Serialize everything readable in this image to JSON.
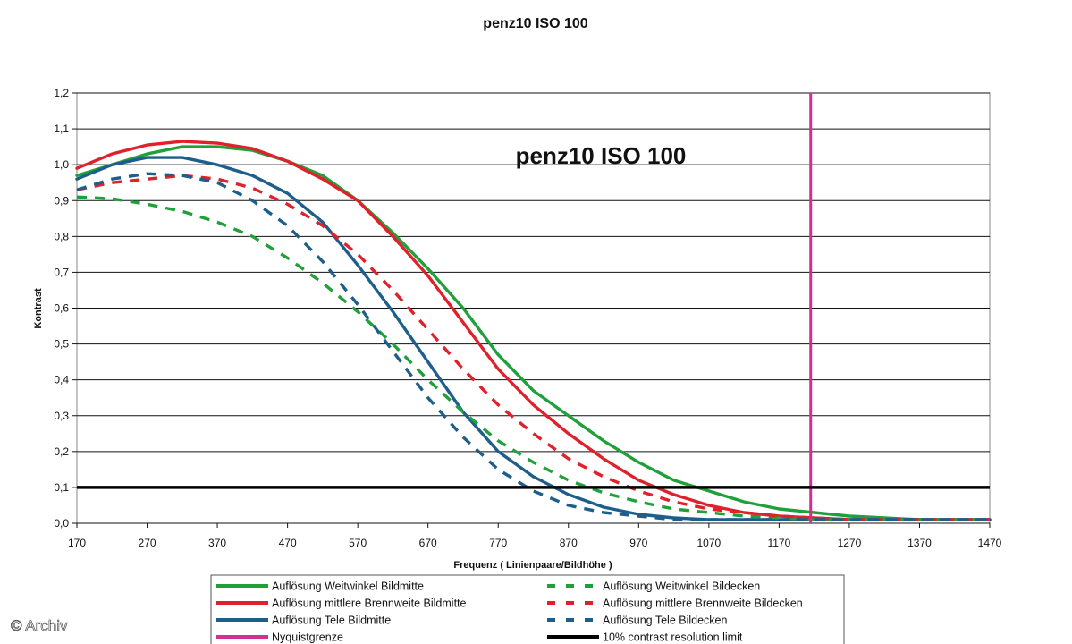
{
  "chart_data": {
    "type": "line",
    "title": "penz10 ISO 100",
    "inner_title": "penz10 ISO 100",
    "xlabel": "Frequenz ( Linienpaare/Bildhöhe )",
    "ylabel": "Kontrast",
    "xlim": [
      170,
      1470
    ],
    "ylim": [
      0,
      1.2
    ],
    "x_ticks": [
      "170",
      "270",
      "370",
      "470",
      "570",
      "670",
      "770",
      "870",
      "970",
      "1070",
      "1170",
      "1270",
      "1370",
      "1470"
    ],
    "y_ticks": [
      "0,0",
      "0,1",
      "0,2",
      "0,3",
      "0,4",
      "0,5",
      "0,6",
      "0,7",
      "0,8",
      "0,9",
      "1,0",
      "1,1",
      "1,2"
    ],
    "grid": "horizontal",
    "legend_position": "bottom",
    "series": [
      {
        "name": "Auflösung Weitwinkel Bildmitte",
        "color": "#1fa03a",
        "dash": false,
        "x": [
          170,
          220,
          270,
          320,
          370,
          420,
          470,
          520,
          570,
          620,
          670,
          720,
          770,
          820,
          870,
          920,
          970,
          1020,
          1070,
          1120,
          1170,
          1220,
          1270,
          1320,
          1370,
          1420,
          1470
        ],
        "y": [
          0.97,
          1.0,
          1.03,
          1.05,
          1.05,
          1.04,
          1.01,
          0.97,
          0.9,
          0.81,
          0.71,
          0.6,
          0.47,
          0.37,
          0.3,
          0.23,
          0.17,
          0.12,
          0.09,
          0.06,
          0.04,
          0.03,
          0.02,
          0.015,
          0.01,
          0.01,
          0.01
        ]
      },
      {
        "name": "Auflösung mittlere Brennweite Bildmitte",
        "color": "#e0202a",
        "dash": false,
        "x": [
          170,
          220,
          270,
          320,
          370,
          420,
          470,
          520,
          570,
          620,
          670,
          720,
          770,
          820,
          870,
          920,
          970,
          1020,
          1070,
          1120,
          1170,
          1220,
          1270,
          1320,
          1370,
          1420,
          1470
        ],
        "y": [
          0.99,
          1.03,
          1.055,
          1.065,
          1.06,
          1.045,
          1.01,
          0.96,
          0.9,
          0.8,
          0.69,
          0.56,
          0.43,
          0.33,
          0.25,
          0.18,
          0.12,
          0.08,
          0.05,
          0.03,
          0.02,
          0.015,
          0.01,
          0.01,
          0.01,
          0.01,
          0.01
        ]
      },
      {
        "name": "Auflösung Tele Bildmitte",
        "color": "#1d5f8a",
        "dash": false,
        "x": [
          170,
          220,
          270,
          320,
          370,
          420,
          470,
          520,
          570,
          620,
          670,
          720,
          770,
          820,
          870,
          920,
          970,
          1020,
          1070,
          1120,
          1170,
          1220,
          1270,
          1320,
          1370,
          1420,
          1470
        ],
        "y": [
          0.96,
          1.0,
          1.02,
          1.02,
          1.0,
          0.97,
          0.92,
          0.84,
          0.72,
          0.59,
          0.45,
          0.31,
          0.2,
          0.13,
          0.08,
          0.045,
          0.025,
          0.015,
          0.01,
          0.01,
          0.01,
          0.01,
          0.01,
          0.01,
          0.01,
          0.01,
          0.01
        ]
      },
      {
        "name": "Auflösung Weitwinkel Bildecken",
        "color": "#1fa03a",
        "dash": true,
        "x": [
          170,
          220,
          270,
          320,
          370,
          420,
          470,
          520,
          570,
          620,
          670,
          720,
          770,
          820,
          870,
          920,
          970,
          1020,
          1070,
          1120,
          1170,
          1220,
          1270,
          1320,
          1370,
          1420,
          1470
        ],
        "y": [
          0.91,
          0.905,
          0.89,
          0.87,
          0.84,
          0.8,
          0.74,
          0.67,
          0.59,
          0.5,
          0.4,
          0.31,
          0.23,
          0.17,
          0.12,
          0.085,
          0.06,
          0.04,
          0.03,
          0.02,
          0.015,
          0.01,
          0.01,
          0.01,
          0.01,
          0.01,
          0.01
        ]
      },
      {
        "name": "Auflösung mittlere Brennweite Bildecken",
        "color": "#e0202a",
        "dash": true,
        "x": [
          170,
          220,
          270,
          320,
          370,
          420,
          470,
          520,
          570,
          620,
          670,
          720,
          770,
          820,
          870,
          920,
          970,
          1020,
          1070,
          1120,
          1170,
          1220,
          1270,
          1320,
          1370,
          1420,
          1470
        ],
        "y": [
          0.93,
          0.95,
          0.96,
          0.97,
          0.96,
          0.935,
          0.89,
          0.83,
          0.75,
          0.65,
          0.54,
          0.43,
          0.33,
          0.25,
          0.18,
          0.13,
          0.09,
          0.06,
          0.04,
          0.03,
          0.02,
          0.015,
          0.01,
          0.01,
          0.01,
          0.01,
          0.01
        ]
      },
      {
        "name": "Auflösung Tele Bildecken",
        "color": "#1d5f8a",
        "dash": true,
        "x": [
          170,
          220,
          270,
          320,
          370,
          420,
          470,
          520,
          570,
          620,
          670,
          720,
          770,
          820,
          870,
          920,
          970,
          1020,
          1070,
          1120,
          1170,
          1220,
          1270,
          1320,
          1370,
          1420,
          1470
        ],
        "y": [
          0.93,
          0.96,
          0.975,
          0.97,
          0.95,
          0.9,
          0.83,
          0.73,
          0.61,
          0.48,
          0.35,
          0.24,
          0.15,
          0.09,
          0.05,
          0.03,
          0.02,
          0.01,
          0.01,
          0.01,
          0.01,
          0.01,
          0.01,
          0.01,
          0.01,
          0.01,
          0.01
        ]
      }
    ],
    "reference_lines": [
      {
        "name": "Nyquistgrenze",
        "orientation": "vertical",
        "x": 1215,
        "color": "#d0308e"
      },
      {
        "name": "10% contrast resolution limit",
        "orientation": "horizontal",
        "y": 0.1,
        "color": "#000000"
      }
    ],
    "legend": [
      {
        "label": "Auflösung Weitwinkel Bildmitte",
        "color": "#1fa03a",
        "dash": false
      },
      {
        "label": "Auflösung Weitwinkel Bildecken",
        "color": "#1fa03a",
        "dash": true
      },
      {
        "label": "Auflösung mittlere Brennweite Bildmitte",
        "color": "#e0202a",
        "dash": false
      },
      {
        "label": "Auflösung mittlere Brennweite Bildecken",
        "color": "#e0202a",
        "dash": true
      },
      {
        "label": "Auflösung Tele Bildmitte",
        "color": "#1d5f8a",
        "dash": false
      },
      {
        "label": "Auflösung Tele Bildecken",
        "color": "#1d5f8a",
        "dash": true
      },
      {
        "label": "Nyquistgrenze",
        "color": "#d0308e",
        "dash": false
      },
      {
        "label": "10% contrast resolution limit",
        "color": "#000000",
        "dash": false
      }
    ]
  },
  "watermark": "© Archiv"
}
